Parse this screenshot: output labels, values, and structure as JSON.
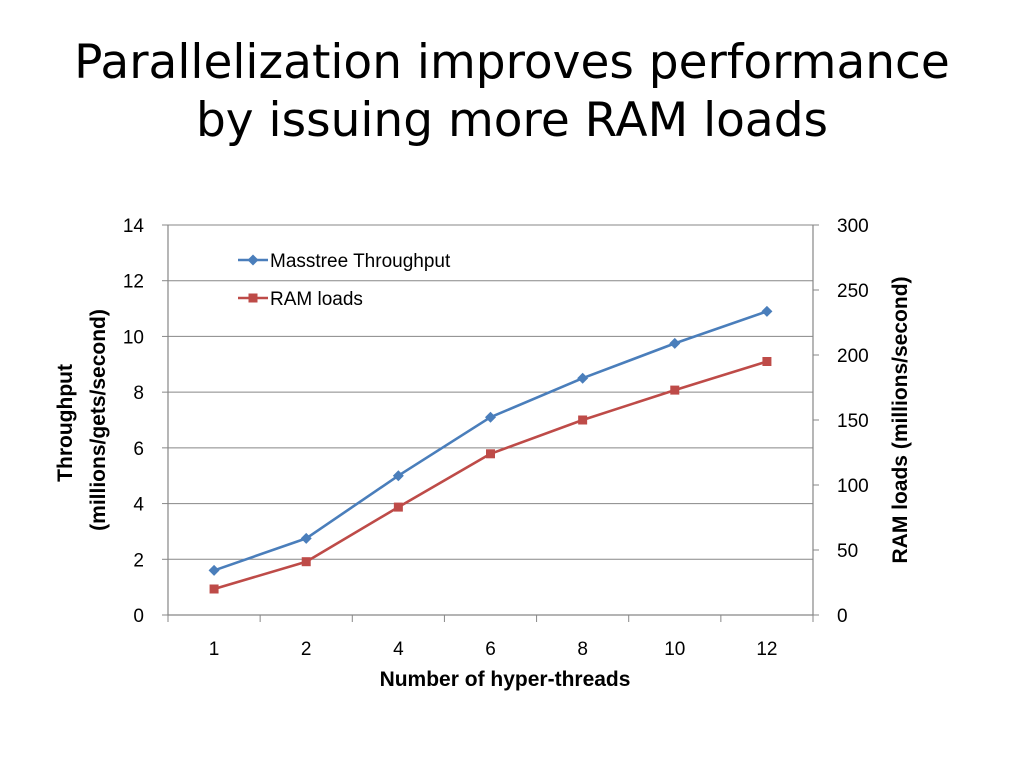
{
  "slide": {
    "title_lines": [
      "Parallelization improves performance",
      "by issuing more RAM loads"
    ]
  },
  "chart_data": {
    "type": "line",
    "categories": [
      "1",
      "2",
      "4",
      "6",
      "8",
      "10",
      "12"
    ],
    "xlabel": "Number of hyper-threads",
    "ylabel_left_lines": [
      "Throughput",
      "(millions/gets/second)"
    ],
    "ylabel_right": "RAM loads (millions/second)",
    "y_left": {
      "min": 0,
      "max": 14,
      "step": 2,
      "ticks": [
        "0",
        "2",
        "4",
        "6",
        "8",
        "10",
        "12",
        "14"
      ]
    },
    "y_right": {
      "min": 0,
      "max": 300,
      "step": 50,
      "ticks": [
        "0",
        "50",
        "100",
        "150",
        "200",
        "250",
        "300"
      ]
    },
    "grid": true,
    "legend_position": "top-left",
    "series": [
      {
        "name": "Masstree Throughput",
        "axis": "left",
        "marker": "diamond",
        "color": "#4a7ebb",
        "values": [
          1.6,
          2.75,
          5.0,
          7.1,
          8.5,
          9.75,
          10.9
        ]
      },
      {
        "name": "RAM loads",
        "axis": "right",
        "marker": "square",
        "color": "#be4b48",
        "values": [
          20,
          41,
          83,
          124,
          150,
          173,
          195
        ]
      }
    ]
  }
}
